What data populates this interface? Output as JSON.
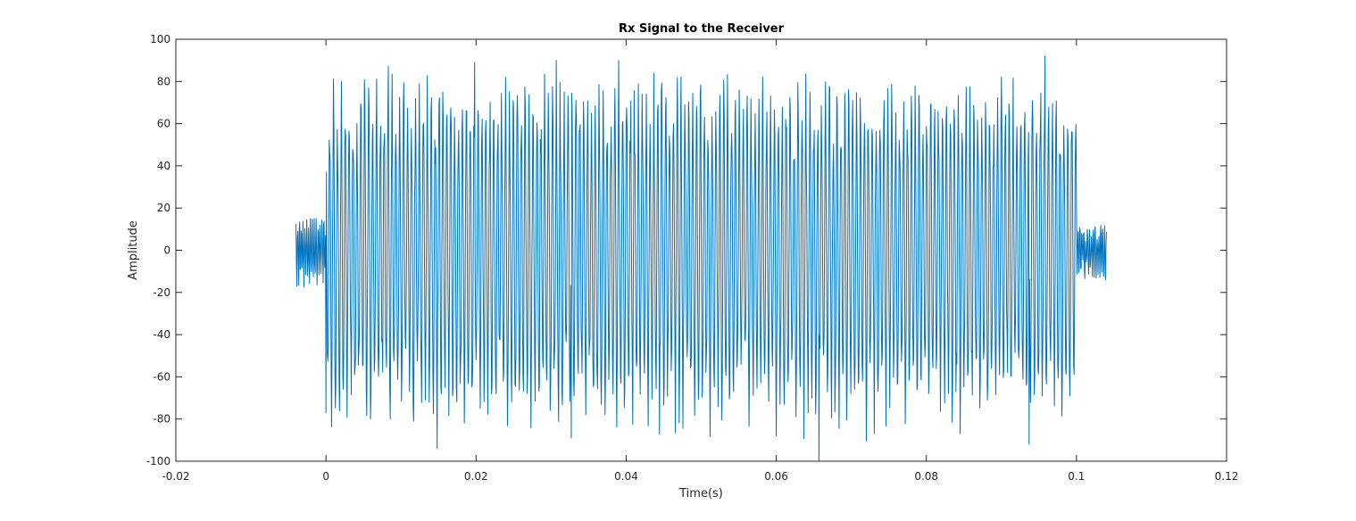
{
  "chart_data": {
    "type": "line",
    "title": "Rx Signal to the Receiver",
    "xlabel": "Time(s)",
    "ylabel": "Amplitude",
    "xlim": [
      -0.02,
      0.12
    ],
    "ylim": [
      -100,
      100
    ],
    "x_ticks": [
      "-0.02",
      "0",
      "0.02",
      "0.04",
      "0.06",
      "0.08",
      "0.1",
      "0.12"
    ],
    "y_ticks": [
      "100",
      "80",
      "60",
      "40",
      "20",
      "0",
      "-20",
      "-40",
      "-60",
      "-80",
      "-100"
    ],
    "grid": false,
    "legend": "none",
    "series": [
      {
        "color": "#0072BD",
        "x_start": -0.004,
        "x_end": 0.104,
        "segments": [
          {
            "t_start": -0.004,
            "t_end": 0.0,
            "envelope": [
              -25,
              15
            ]
          },
          {
            "t_start": 0.0,
            "t_end": 0.1,
            "envelope": [
              -100,
              92
            ]
          },
          {
            "t_start": 0.1,
            "t_end": 0.104,
            "envelope": [
              -20,
              20
            ]
          }
        ],
        "peaks": [
          {
            "x": 0.0,
            "y": 61
          },
          {
            "x": 0.0,
            "y": -77
          },
          {
            "x": 0.0148,
            "y": -94
          },
          {
            "x": 0.0198,
            "y": 89
          },
          {
            "x": 0.0307,
            "y": 90
          },
          {
            "x": 0.0327,
            "y": -89
          },
          {
            "x": 0.039,
            "y": 90
          },
          {
            "x": 0.06,
            "y": -88
          },
          {
            "x": 0.0657,
            "y": -100
          },
          {
            "x": 0.0937,
            "y": -92
          },
          {
            "x": 0.0958,
            "y": 92
          },
          {
            "x": 0.1,
            "y": 20
          }
        ]
      }
    ]
  }
}
